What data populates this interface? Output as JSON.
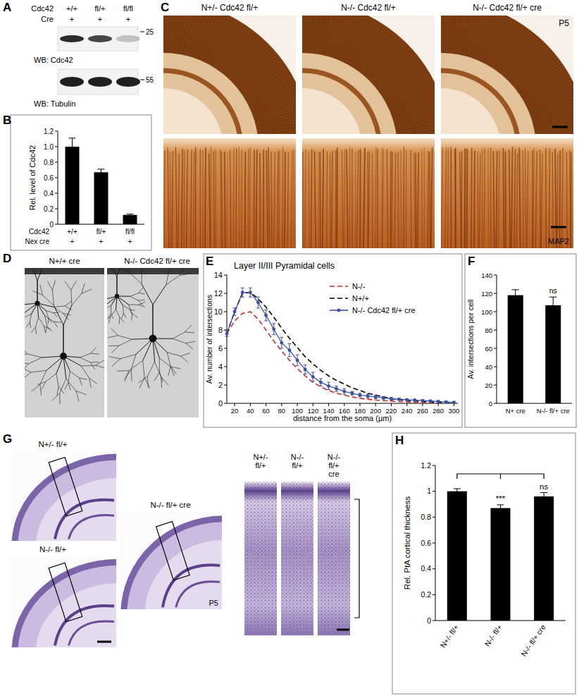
{
  "blot": {
    "panel_label": "A",
    "row_titles": [
      "Cdc42",
      "Cre"
    ],
    "rows": [
      [
        "+/+",
        "fl/+",
        "fl/fl"
      ],
      [
        "+",
        "+",
        "+"
      ]
    ],
    "blots": [
      {
        "label": "WB: Cdc42",
        "marker": 25
      },
      {
        "label": "WB: Tubulin",
        "marker": 55
      }
    ]
  },
  "maps": {
    "panel_label": "C",
    "columns": [
      "N+/- Cdc42 fl/+",
      "N-/- Cdc42 fl/+",
      "N-/- Cdc42 fl/+ cre"
    ],
    "age": "P5",
    "stain": "MAP2"
  },
  "neurons": {
    "panel_label": "D",
    "columns": [
      "N+/+ cre",
      "N-/- Cdc42 fl/+ cre"
    ]
  },
  "nissl": {
    "panel_label": "G",
    "sections": [
      "N+/- fl/+",
      "N-/- fl/+",
      "N-/- fl/+ cre"
    ],
    "age": "P5",
    "strips": [
      [
        "N+/-",
        "fl/+"
      ],
      [
        "N-/-",
        "fl/+"
      ],
      [
        "N-/-",
        "fl/+",
        "cre"
      ]
    ]
  },
  "chart_data": [
    {
      "panel_label": "B",
      "type": "bar",
      "ylabel": "Rel. level of Cdc42",
      "categories": [
        "+/+",
        "fl/+",
        "fl/fl"
      ],
      "category_title": "Cdc42",
      "second_row_title": "Nex cre",
      "second_row": [
        "+",
        "+",
        "+"
      ],
      "values": [
        1.0,
        0.67,
        0.12
      ],
      "errors": [
        0.11,
        0.04,
        0.01
      ],
      "color": "#000000",
      "ylim": [
        0,
        1.2
      ],
      "yticks": [
        0,
        0.2,
        0.4,
        0.6,
        0.8,
        {
          "value": 1,
          "label": "1.0"
        },
        1.2
      ]
    },
    {
      "panel_label": "E",
      "type": "line",
      "title": "Layer II/III Pyramidal cells",
      "xlabel": "distance from the soma (µm)",
      "ylabel": "Av. number of intersections",
      "x": [
        10,
        20,
        30,
        40,
        50,
        60,
        70,
        80,
        90,
        100,
        110,
        120,
        130,
        140,
        150,
        160,
        170,
        180,
        190,
        200,
        210,
        220,
        230,
        240,
        250,
        260,
        270,
        280,
        290,
        300
      ],
      "series": [
        {
          "name": "N-/-",
          "color": "#cc2b2b",
          "line_style": "dashed",
          "values": [
            7.6,
            9.0,
            9.8,
            10.0,
            9.2,
            8.0,
            6.8,
            5.7,
            4.7,
            3.8,
            3.0,
            2.3,
            1.8,
            1.4,
            1.1,
            0.9,
            0.7,
            0.55,
            0.45,
            0.35,
            0.3,
            0.25,
            0.2,
            0.15,
            0.1,
            0.1,
            0.05,
            0.05,
            0,
            0
          ]
        },
        {
          "name": "N+/+",
          "color": "#000000",
          "line_style": "dashed",
          "values": [
            7.6,
            10.0,
            12.0,
            12.1,
            11.4,
            10.5,
            9.4,
            8.2,
            7.1,
            6.1,
            5.1,
            4.3,
            3.6,
            3.0,
            2.5,
            2.1,
            1.7,
            1.4,
            1.1,
            0.9,
            0.7,
            0.5,
            0.4,
            0.3,
            0.25,
            0.2,
            0.15,
            0.1,
            0.1,
            0.05
          ]
        },
        {
          "name": "N-/- Cdc42 fl/+ cre",
          "color": "#3b4fa3",
          "line_style": "solid",
          "marker": "circle",
          "values": [
            7.6,
            10.0,
            12.1,
            12.1,
            11.0,
            9.6,
            8.1,
            6.6,
            5.8,
            4.7,
            3.7,
            2.9,
            2.3,
            1.9,
            1.6,
            1.3,
            1.1,
            0.9,
            0.8,
            0.7,
            0.6,
            0.5,
            0.45,
            0.4,
            0.35,
            0.3,
            0.25,
            0.2,
            0.15,
            0.1
          ],
          "errors": [
            0.3,
            0.4,
            0.5,
            0.5,
            0.6,
            0.6,
            0.6,
            0.6,
            0.7,
            0.6,
            0.5,
            0.5,
            0.4,
            0.4,
            0.3,
            0.3,
            0.2,
            0.2,
            0.2,
            0.2,
            0.15,
            0.15,
            0.1,
            0.1,
            0.1,
            0.1,
            0.1,
            0.1,
            0.1,
            0.1
          ]
        }
      ],
      "xlim": [
        10,
        305
      ],
      "ylim": [
        0,
        14
      ],
      "xticks": [
        20,
        40,
        60,
        80,
        100,
        120,
        140,
        160,
        180,
        200,
        220,
        240,
        260,
        280,
        300
      ],
      "yticks": [
        0,
        2,
        4,
        6,
        8,
        10,
        12,
        14
      ],
      "legend": "upper right"
    },
    {
      "panel_label": "F",
      "type": "bar",
      "ylabel": "Av. intersections per cell",
      "categories": [
        "N+ cre",
        "N-/- fl/+ cre"
      ],
      "values": [
        118,
        107
      ],
      "errors": [
        6,
        9
      ],
      "significance": [
        null,
        "ns"
      ],
      "color": "#000000",
      "ylim": [
        0,
        140
      ],
      "yticks": [
        0,
        20,
        40,
        60,
        80,
        100,
        120,
        140
      ]
    },
    {
      "panel_label": "H",
      "type": "bar",
      "ylabel": "Rel. PtA cortical thickness",
      "categories": [
        "N+/- fl/+",
        "N-/- fl/+",
        "N-/- fl/+ cre"
      ],
      "values": [
        1.0,
        0.87,
        0.96
      ],
      "errors": [
        0.02,
        0.025,
        0.03
      ],
      "significance": [
        null,
        "***",
        "ns"
      ],
      "color": "#000000",
      "ylim": [
        0,
        1.2
      ],
      "yticks": [
        0,
        0.2,
        0.4,
        0.6,
        0.8,
        1,
        1.2
      ]
    }
  ]
}
